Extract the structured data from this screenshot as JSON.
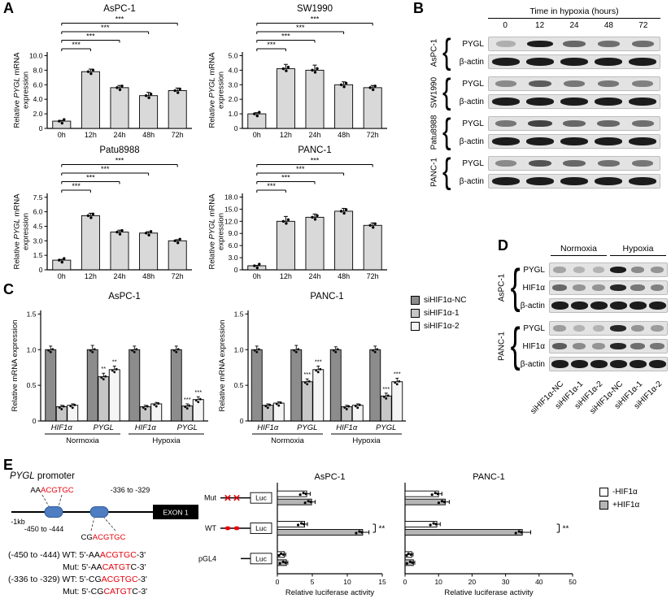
{
  "panel_letters": {
    "A": "A",
    "B": "B",
    "C": "C",
    "D": "D",
    "E": "E"
  },
  "colors": {
    "bar_fill": "#d9d9d9",
    "series_fills": [
      "#8c8c8c",
      "#c6c6c6",
      "#f5f5f5"
    ],
    "hbar_fills": [
      "#ffffff",
      "#b5b5b5"
    ],
    "red": "#e8000b",
    "site_fill": "#4f7dc2",
    "site_stroke": "#2c5a9e"
  },
  "icons": {
    "brace": "{"
  },
  "chart_data": [
    {
      "panel": "A",
      "id": "A-AsPC1",
      "type": "bar",
      "title": "AsPC-1",
      "ylabel_lines": [
        [
          {
            "t": "Relative "
          },
          {
            "t": "PYGL",
            "i": 1
          },
          {
            "t": " mRNA"
          }
        ],
        [
          {
            "t": "expression"
          }
        ]
      ],
      "categories": [
        "0h",
        "12h",
        "24h",
        "48h",
        "72h"
      ],
      "values": [
        1.0,
        7.8,
        5.6,
        4.5,
        5.2
      ],
      "errors": [
        0.1,
        0.35,
        0.3,
        0.45,
        0.35
      ],
      "yticks": [
        "0",
        "2.0",
        "4.0",
        "6.0",
        "8.0",
        "10.0"
      ],
      "ylim": [
        0,
        10.5
      ],
      "sig": [
        {
          "from": 0,
          "to": 1,
          "label": "***"
        },
        {
          "from": 0,
          "to": 2,
          "label": "***"
        },
        {
          "from": 0,
          "to": 3,
          "label": "***"
        },
        {
          "from": 0,
          "to": 4,
          "label": "***"
        }
      ]
    },
    {
      "panel": "A",
      "id": "A-SW1990",
      "type": "bar",
      "title": "SW1990",
      "ylabel_lines": [
        [
          {
            "t": "Relative "
          },
          {
            "t": "PYGL",
            "i": 1
          },
          {
            "t": " mRNA"
          }
        ],
        [
          {
            "t": "expression"
          }
        ]
      ],
      "categories": [
        "0h",
        "12h",
        "24h",
        "48h",
        "72h"
      ],
      "values": [
        1.0,
        4.1,
        4.0,
        3.0,
        2.8
      ],
      "errors": [
        0.08,
        0.3,
        0.35,
        0.2,
        0.15
      ],
      "yticks": [
        "0",
        "1.0",
        "2.0",
        "3.0",
        "4.0",
        "5.0"
      ],
      "ylim": [
        0,
        5.25
      ],
      "sig": [
        {
          "from": 0,
          "to": 1,
          "label": "***"
        },
        {
          "from": 0,
          "to": 2,
          "label": "***"
        },
        {
          "from": 0,
          "to": 3,
          "label": "***"
        },
        {
          "from": 0,
          "to": 4,
          "label": "***"
        }
      ]
    },
    {
      "panel": "A",
      "id": "A-Patu8988",
      "type": "bar",
      "title": "Patu8988",
      "ylabel_lines": [
        [
          {
            "t": "Relative "
          },
          {
            "t": "PYGL",
            "i": 1
          },
          {
            "t": " mRNA"
          }
        ],
        [
          {
            "t": "expression"
          }
        ]
      ],
      "categories": [
        "0h",
        "12h",
        "24h",
        "48h",
        "72h"
      ],
      "values": [
        1.0,
        5.6,
        3.9,
        3.8,
        3.0
      ],
      "errors": [
        0.08,
        0.25,
        0.2,
        0.15,
        0.12
      ],
      "yticks": [
        "0",
        "1.5",
        "3.0",
        "4.5",
        "6.0",
        "7.5"
      ],
      "ylim": [
        0,
        7.9
      ],
      "sig": [
        {
          "from": 0,
          "to": 1,
          "label": "***"
        },
        {
          "from": 0,
          "to": 2,
          "label": "***"
        },
        {
          "from": 0,
          "to": 3,
          "label": "***"
        },
        {
          "from": 0,
          "to": 4,
          "label": "***"
        }
      ]
    },
    {
      "panel": "A",
      "id": "A-PANC1",
      "type": "bar",
      "title": "PANC-1",
      "ylabel_lines": [
        [
          {
            "t": "Relative "
          },
          {
            "t": "PYGL",
            "i": 1
          },
          {
            "t": " mRNA"
          }
        ],
        [
          {
            "t": "expression"
          }
        ]
      ],
      "categories": [
        "0h",
        "12h",
        "24h",
        "48h",
        "72h"
      ],
      "values": [
        1.0,
        12.0,
        13.0,
        14.5,
        11.0
      ],
      "errors": [
        0.1,
        1.2,
        0.8,
        0.7,
        0.6
      ],
      "yticks": [
        "0",
        "3.0",
        "6.0",
        "9.0",
        "12.0",
        "15.0",
        "18.0"
      ],
      "ylim": [
        0,
        18.9
      ],
      "sig": [
        {
          "from": 0,
          "to": 1,
          "label": "***"
        },
        {
          "from": 0,
          "to": 2,
          "label": "***"
        },
        {
          "from": 0,
          "to": 3,
          "label": "***"
        },
        {
          "from": 0,
          "to": 4,
          "label": "***"
        }
      ]
    },
    {
      "panel": "C",
      "id": "C-AsPC1",
      "type": "grouped-bar",
      "title": "AsPC-1",
      "ylabel_lines": [
        [
          {
            "t": "Relative mRNA expression"
          }
        ]
      ],
      "series": [
        "siHIF1α-NC",
        "siHIF1α-1",
        "siHIF1α-2"
      ],
      "yticks": [
        "0",
        "0.5",
        "1.0",
        "1.5"
      ],
      "ylim": [
        0,
        1.55
      ],
      "conditions": [
        "Normoxia",
        "Hypoxia"
      ],
      "groups": [
        {
          "label": "HIF1α",
          "values": [
            1.0,
            0.2,
            0.22
          ],
          "errors": [
            0.05,
            0.02,
            0.02
          ],
          "sig": [
            "",
            "",
            ""
          ]
        },
        {
          "label": "PYGL",
          "values": [
            1.0,
            0.62,
            0.72
          ],
          "errors": [
            0.06,
            0.05,
            0.05
          ],
          "sig": [
            "",
            "**",
            "**"
          ]
        },
        {
          "label": "HIF1α",
          "values": [
            1.0,
            0.2,
            0.24
          ],
          "errors": [
            0.05,
            0.02,
            0.02
          ],
          "sig": [
            "",
            "",
            ""
          ]
        },
        {
          "label": "PYGL",
          "values": [
            1.0,
            0.21,
            0.3
          ],
          "errors": [
            0.05,
            0.03,
            0.04
          ],
          "sig": [
            "",
            "***",
            "***"
          ]
        }
      ]
    },
    {
      "panel": "C",
      "id": "C-PANC1",
      "type": "grouped-bar",
      "title": "PANC-1",
      "ylabel_lines": [
        [
          {
            "t": "Relative mRNA expression"
          }
        ]
      ],
      "series": [
        "siHIF1α-NC",
        "siHIF1α-1",
        "siHIF1α-2"
      ],
      "yticks": [
        "0",
        "0.5",
        "1.0",
        "1.5"
      ],
      "ylim": [
        0,
        1.55
      ],
      "conditions": [
        "Normoxia",
        "Hypoxia"
      ],
      "groups": [
        {
          "label": "HIF1α",
          "values": [
            1.0,
            0.22,
            0.25
          ],
          "errors": [
            0.05,
            0.02,
            0.02
          ],
          "sig": [
            "",
            "",
            ""
          ]
        },
        {
          "label": "PYGL",
          "values": [
            1.0,
            0.55,
            0.72
          ],
          "errors": [
            0.06,
            0.04,
            0.05
          ],
          "sig": [
            "",
            "***",
            "***"
          ]
        },
        {
          "label": "HIF1α",
          "values": [
            1.0,
            0.2,
            0.22
          ],
          "errors": [
            0.04,
            0.02,
            0.02
          ],
          "sig": [
            "",
            "",
            ""
          ]
        },
        {
          "label": "PYGL",
          "values": [
            1.0,
            0.35,
            0.55
          ],
          "errors": [
            0.05,
            0.04,
            0.05
          ],
          "sig": [
            "",
            "***",
            "***"
          ]
        }
      ]
    },
    {
      "panel": "E1",
      "id": "E-AsPC1",
      "type": "hbar",
      "title": "AsPC-1",
      "xlabel": "Relative luciferase activity",
      "categories": [
        "Mut",
        "WT",
        "pGL4"
      ],
      "series": [
        {
          "name": "-HIF1α",
          "values": [
            4.2,
            3.9,
            1.0
          ]
        },
        {
          "name": "+HIF1α",
          "values": [
            4.9,
            12.2,
            1.3
          ]
        }
      ],
      "errors": [
        [
          0.5,
          0.4,
          0.2
        ],
        [
          0.5,
          0.9,
          0.2
        ]
      ],
      "xticks": [
        "0",
        "5",
        "10",
        "15"
      ],
      "xlim": [
        0,
        15
      ],
      "sig": [
        {
          "category": 1,
          "label": "**",
          "x": 14
        }
      ]
    },
    {
      "panel": "E2",
      "id": "E-PANC1",
      "type": "hbar",
      "title": "PANC-1",
      "xlabel": "Relative luciferase activity",
      "categories": [
        "Mut",
        "WT",
        "pGL4"
      ],
      "series": [
        {
          "name": "-HIF1α",
          "values": [
            10.0,
            9.5,
            2.0
          ]
        },
        {
          "name": "+HIF1α",
          "values": [
            12.0,
            35.0,
            2.5
          ]
        }
      ],
      "errors": [
        [
          1.0,
          1.0,
          0.4
        ],
        [
          1.2,
          2.5,
          0.4
        ]
      ],
      "xticks": [
        "0",
        "10",
        "20",
        "30",
        "40",
        "50"
      ],
      "xlim": [
        0,
        50
      ],
      "sig": [
        {
          "category": 1,
          "label": "**",
          "x": 46
        }
      ]
    }
  ],
  "panel_b": {
    "header": "Time in hypoxia (hours)",
    "lanes": [
      "0",
      "12",
      "24",
      "48",
      "72"
    ],
    "groups": [
      {
        "cell": "AsPC-1",
        "rows": [
          {
            "label": "PYGL",
            "type": "pygl",
            "bands": [
              0.15,
              0.95,
              0.55,
              0.5,
              0.5
            ]
          },
          {
            "label": "β-actin",
            "type": "actin",
            "bands": [
              0.95,
              0.95,
              0.95,
              0.95,
              0.95
            ]
          }
        ]
      },
      {
        "cell": "SW1990",
        "rows": [
          {
            "label": "PYGL",
            "type": "pygl",
            "bands": [
              0.35,
              0.6,
              0.45,
              0.45,
              0.4
            ]
          },
          {
            "label": "β-actin",
            "type": "actin",
            "bands": [
              0.95,
              0.95,
              0.95,
              0.95,
              0.95
            ]
          }
        ]
      },
      {
        "cell": "Patu8988",
        "rows": [
          {
            "label": "PYGL",
            "type": "pygl",
            "bands": [
              0.45,
              0.75,
              0.55,
              0.55,
              0.5
            ]
          },
          {
            "label": "β-actin",
            "type": "actin",
            "bands": [
              0.95,
              0.95,
              0.95,
              0.95,
              0.95
            ]
          }
        ]
      },
      {
        "cell": "PANC-1",
        "rows": [
          {
            "label": "PYGL",
            "type": "pygl",
            "bands": [
              0.35,
              0.65,
              0.55,
              0.5,
              0.45
            ]
          },
          {
            "label": "β-actin",
            "type": "actin",
            "bands": [
              0.95,
              0.95,
              0.95,
              0.95,
              0.95
            ]
          }
        ]
      }
    ]
  },
  "panel_c": {
    "legend": [
      "siHIF1α-NC",
      "siHIF1α-1",
      "siHIF1α-2"
    ]
  },
  "panel_d": {
    "headers": [
      "Normoxia",
      "Hypoxia"
    ],
    "lanes": [
      "siHIF1α-NC",
      "siHIF1α-1",
      "siHIF1α-2",
      "siHIF1α-NC",
      "siHIF1α-1",
      "siHIF1α-2"
    ],
    "groups": [
      {
        "cell": "AsPC-1",
        "rows": [
          {
            "label": "PYGL",
            "type": "pygl",
            "bands": [
              0.2,
              0.12,
              0.12,
              0.95,
              0.35,
              0.3
            ]
          },
          {
            "label": "HIF1α",
            "type": "pygl",
            "bands": [
              0.55,
              0.3,
              0.3,
              0.9,
              0.45,
              0.4
            ]
          },
          {
            "label": "β-actin",
            "type": "actin",
            "bands": [
              0.95,
              0.95,
              0.95,
              0.95,
              0.95,
              0.95
            ]
          }
        ]
      },
      {
        "cell": "PANC-1",
        "rows": [
          {
            "label": "PYGL",
            "type": "pygl",
            "bands": [
              0.25,
              0.12,
              0.12,
              0.9,
              0.3,
              0.25
            ]
          },
          {
            "label": "HIF1α",
            "type": "pygl",
            "bands": [
              0.6,
              0.35,
              0.3,
              0.9,
              0.5,
              0.45
            ]
          },
          {
            "label": "β-actin",
            "type": "actin",
            "bands": [
              0.95,
              0.95,
              0.95,
              0.95,
              0.95,
              0.95
            ]
          }
        ]
      }
    ]
  },
  "panel_e": {
    "promoter": {
      "title_italic": "PYGL",
      "title_rest": " promoter",
      "top_seq": [
        {
          "t": "AA"
        },
        {
          "t": "ACGTGC",
          "red": 1
        }
      ],
      "site2_pos": "-336 to -329",
      "site1_pos": "-450 to -444",
      "bottom_seq": [
        {
          "t": "CG"
        },
        {
          "t": "ACGTGC",
          "red": 1
        }
      ],
      "scale": "-1kb",
      "exon": "EXON 1"
    },
    "sequences": [
      {
        "indent": 0,
        "segs": [
          {
            "t": "(-450 to -444) WT: 5'-AA"
          },
          {
            "t": "ACGTGC",
            "red": 1
          },
          {
            "t": "-3'"
          }
        ]
      },
      {
        "indent": 1,
        "segs": [
          {
            "t": "Mut: 5'-AA"
          },
          {
            "t": "CATGT",
            "red": 1
          },
          {
            "t": "C-3'"
          }
        ]
      },
      {
        "indent": 0,
        "segs": [
          {
            "t": "(-336 to -329) WT: 5'-CG"
          },
          {
            "t": "ACGTGC",
            "red": 1
          },
          {
            "t": "-3'"
          }
        ]
      },
      {
        "indent": 1,
        "segs": [
          {
            "t": "Mut: 5'-CG"
          },
          {
            "t": "CATGT",
            "red": 1
          },
          {
            "t": "C-3'"
          }
        ]
      }
    ],
    "constructs": [
      {
        "label": "Mut",
        "marks": "x",
        "luc": "Luc"
      },
      {
        "label": "WT",
        "marks": "dot",
        "luc": "Luc"
      },
      {
        "label": "pGL4",
        "marks": "none",
        "luc": "Luc"
      }
    ],
    "legend": [
      {
        "label": "-HIF1α",
        "fill": "#ffffff"
      },
      {
        "label": "+HIF1α",
        "fill": "#b5b5b5"
      }
    ]
  }
}
